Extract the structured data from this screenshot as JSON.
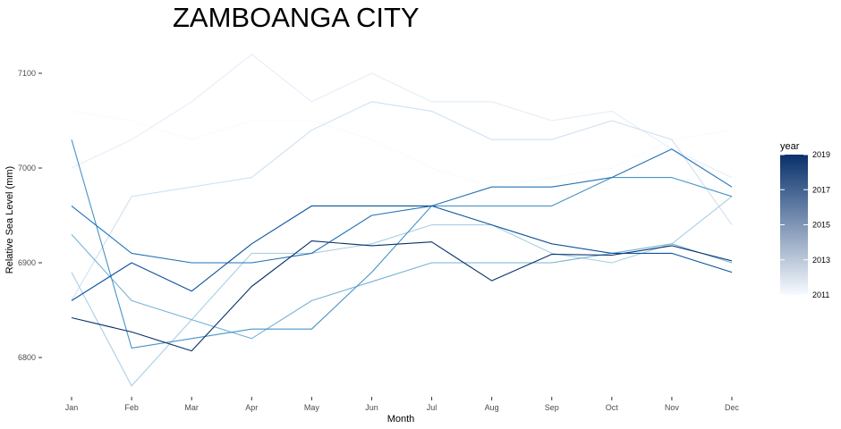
{
  "chart_data": {
    "type": "line",
    "title": "ZAMBOANGA CITY",
    "xlabel": "Month",
    "ylabel": "Relative Sea Level (mm)",
    "categories": [
      "Jan",
      "Feb",
      "Mar",
      "Apr",
      "May",
      "Jun",
      "Jul",
      "Aug",
      "Sep",
      "Oct",
      "Nov",
      "Dec"
    ],
    "y_ticks": [
      6800,
      6900,
      7000,
      7100
    ],
    "ylim": [
      6768,
      7124
    ],
    "grid": false,
    "legend": {
      "title": "year",
      "position": "right",
      "type": "colorbar",
      "range": [
        2011,
        2019
      ],
      "breaks": [
        2019,
        2017,
        2015,
        2013,
        2011
      ],
      "low_color": "#f7fbff",
      "high_color": "#08306b"
    },
    "series": [
      {
        "year": 2011,
        "color": "#f7fbff",
        "values": [
          7060,
          7050,
          7030,
          7050,
          7050,
          7030,
          7000,
          6980,
          6990,
          7000,
          7030,
          7040
        ]
      },
      {
        "year": 2012,
        "color": "#e4eef8",
        "values": [
          7000,
          7030,
          7070,
          7120,
          7070,
          7100,
          7070,
          7070,
          7050,
          7060,
          7020,
          6990
        ]
      },
      {
        "year": 2013,
        "color": "#cfe1f2",
        "values": [
          6860,
          6970,
          6980,
          6990,
          7040,
          7070,
          7060,
          7030,
          7030,
          7050,
          7030,
          6940
        ]
      },
      {
        "year": 2014,
        "color": "#a9cfe5",
        "values": [
          6890,
          6770,
          6840,
          6910,
          6910,
          6920,
          6940,
          6940,
          6910,
          6900,
          6920,
          6970
        ]
      },
      {
        "year": 2015,
        "color": "#75b3d8",
        "values": [
          6930,
          6860,
          6840,
          6820,
          6860,
          6880,
          6900,
          6900,
          6900,
          6910,
          6920,
          6900
        ]
      },
      {
        "year": 2016,
        "color": "#4893c8",
        "values": [
          7030,
          6810,
          6820,
          6830,
          6830,
          6890,
          6960,
          6960,
          6960,
          6990,
          6990,
          6970
        ]
      },
      {
        "year": 2017,
        "color": "#2272b5",
        "values": [
          6960,
          6910,
          6900,
          6900,
          6910,
          6950,
          6960,
          6980,
          6980,
          6990,
          7020,
          6980
        ]
      },
      {
        "year": 2018,
        "color": "#0a529e",
        "values": [
          6860,
          6900,
          6870,
          6920,
          6960,
          6960,
          6960,
          6940,
          6920,
          6910,
          6910,
          6890
        ]
      },
      {
        "year": 2019,
        "color": "#08306b",
        "values": [
          6842,
          6827,
          6807,
          6875,
          6923,
          6918,
          6922,
          6881,
          6909,
          6908,
          6918,
          6902
        ]
      }
    ]
  }
}
